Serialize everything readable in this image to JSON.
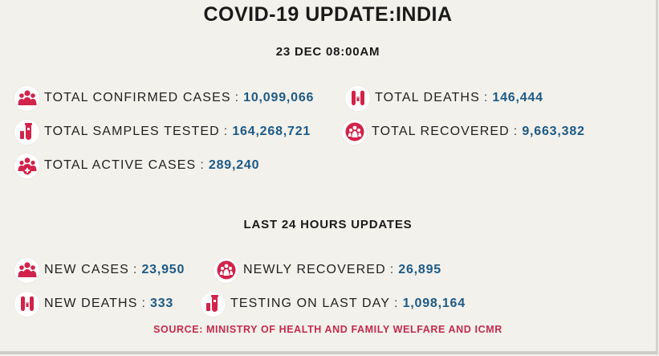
{
  "title": "COVID-19 UPDATE:INDIA",
  "date": "23 DEC 08:00AM",
  "separator": ":",
  "totals": {
    "confirmed": {
      "label": "TOTAL CONFIRMED CASES",
      "value": "10,099,066",
      "icon": "people-group-icon"
    },
    "deaths": {
      "label": "TOTAL DEATHS",
      "value": "146,444",
      "icon": "feet-tag-icon"
    },
    "samples": {
      "label": "TOTAL SAMPLES TESTED",
      "value": "164,268,721",
      "icon": "test-tube-icon"
    },
    "recovered": {
      "label": "TOTAL RECOVERED",
      "value": "9,663,382",
      "icon": "recovered-people-icon"
    },
    "active": {
      "label": "TOTAL ACTIVE CASES",
      "value": "289,240",
      "icon": "people-plus-icon"
    }
  },
  "last24_heading": "LAST 24 HOURS UPDATES",
  "last24": {
    "new_cases": {
      "label": "NEW CASES",
      "value": "23,950",
      "icon": "people-group-icon"
    },
    "newly_recovered": {
      "label": "NEWLY RECOVERED",
      "value": "26,895",
      "icon": "recovered-people-icon"
    },
    "new_deaths": {
      "label": "NEW DEATHS",
      "value": "333",
      "icon": "feet-tag-icon"
    },
    "testing_last_day": {
      "label": "TESTING ON LAST DAY",
      "value": "1,098,164",
      "icon": "test-tube-icon"
    }
  },
  "source": "SOURCE: MINISTRY OF HEALTH AND FAMILY WELFARE AND ICMR",
  "colors": {
    "value": "#1d5a86",
    "icon": "#d2234a",
    "source": "#c42a4b",
    "background": "#f2f1ec"
  }
}
